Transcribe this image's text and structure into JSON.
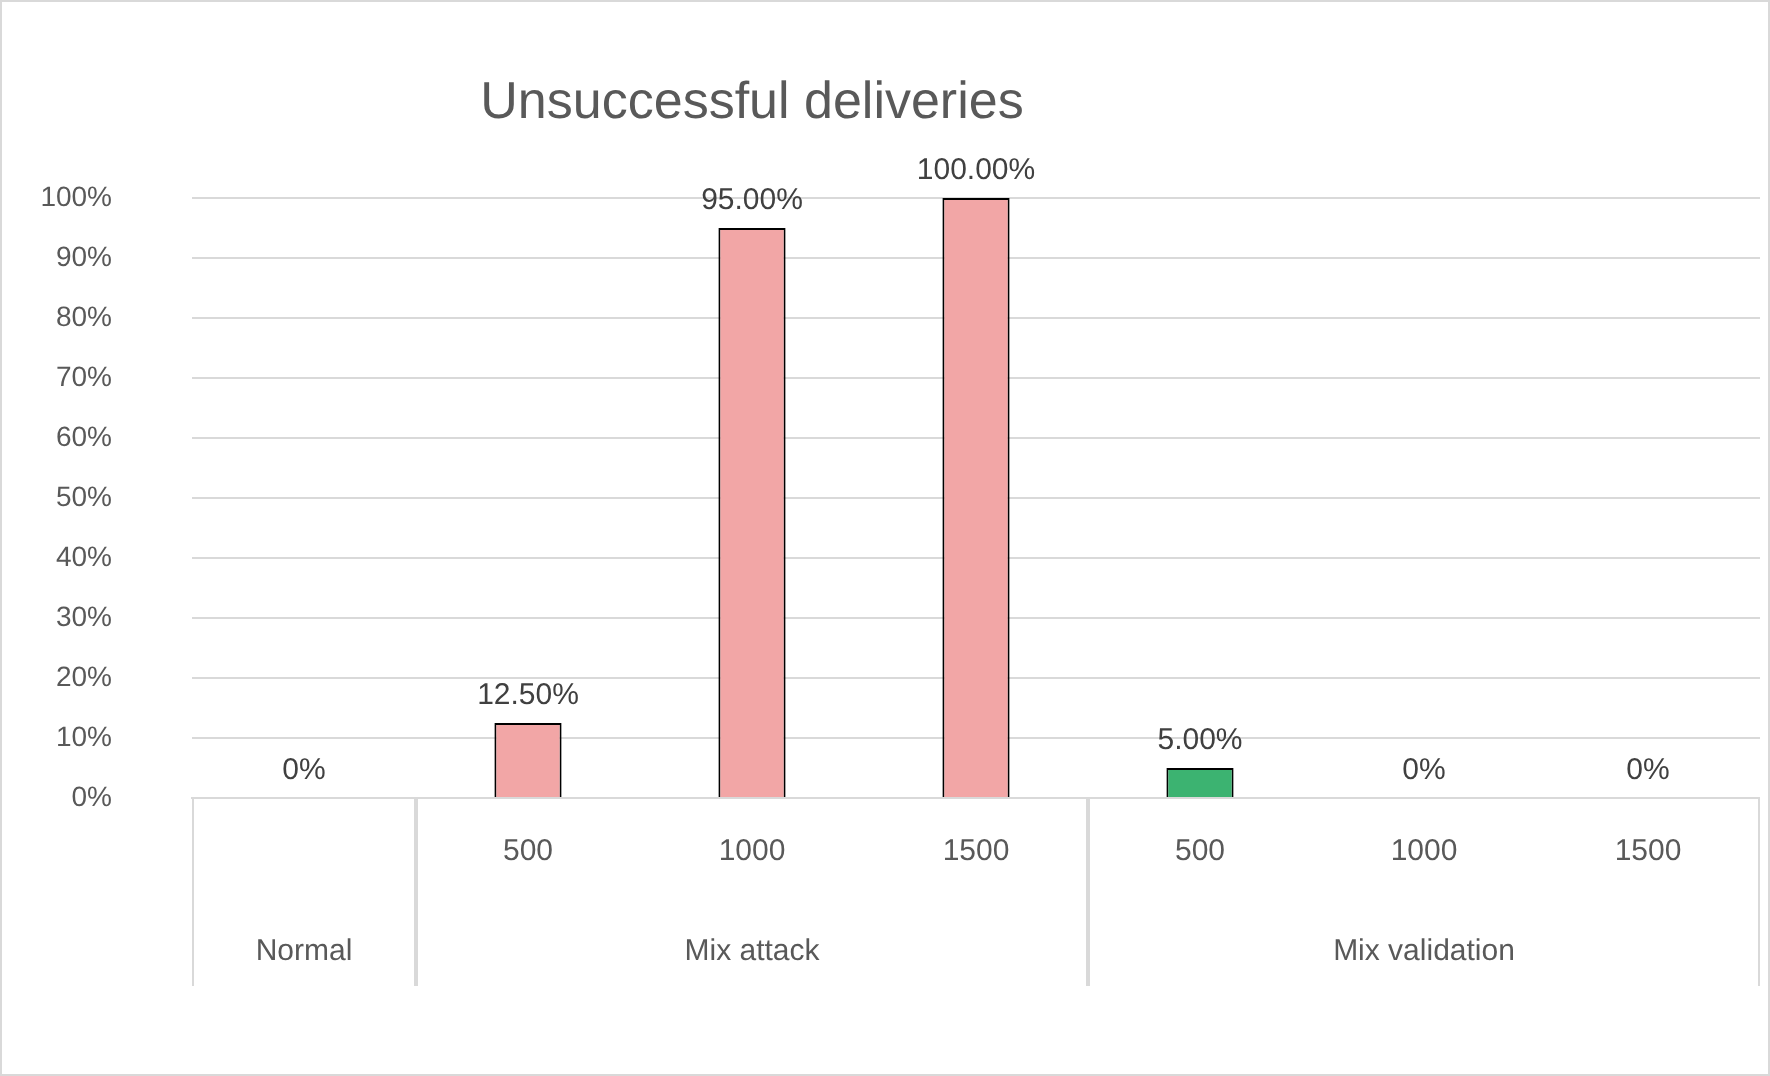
{
  "chart_data": [
    {
      "type": "bar",
      "categories": [
        null
      ],
      "values": [
        0
      ],
      "value_labels": [
        "0%"
      ],
      "color": "#f2a6a6",
      "xlabel": "Normal",
      "ylim": [
        0,
        100
      ],
      "yticks": [
        {
          "value": 0,
          "label": "0%"
        },
        {
          "value": 10,
          "label": "10%"
        },
        {
          "value": 20,
          "label": "20%"
        },
        {
          "value": 30,
          "label": "30%"
        },
        {
          "value": 40,
          "label": "40%"
        },
        {
          "value": 50,
          "label": "50%"
        },
        {
          "value": 60,
          "label": "60%"
        },
        {
          "value": 70,
          "label": "70%"
        },
        {
          "value": 80,
          "label": "80%"
        },
        {
          "value": 90,
          "label": "90%"
        },
        {
          "value": 100,
          "label": "100%"
        }
      ],
      "grid": "y"
    },
    {
      "type": "bar",
      "title": "Unsuccessful deliveries",
      "categories": [
        "500",
        "1000",
        "1500"
      ],
      "values": [
        12.5,
        95,
        100
      ],
      "value_labels": [
        "12.50%",
        "95.00%",
        "100.00%"
      ],
      "color": "#f2a6a6",
      "xlabel": "Mix attack",
      "ylim": [
        0,
        100
      ],
      "yticks": [
        0,
        10,
        20,
        30,
        40,
        50,
        60,
        70,
        80,
        90,
        100
      ],
      "grid": "y",
      "tick_labels": "x"
    },
    {
      "type": "bar",
      "categories": [
        "500",
        "1000",
        "1500"
      ],
      "values": [
        5,
        0,
        0
      ],
      "value_labels": [
        "5.00%",
        "0%",
        "0%"
      ],
      "color": "#3cb371",
      "xlabel": "Mix validation",
      "ylim": [
        0,
        100
      ],
      "yticks": [
        0,
        10,
        20,
        30,
        40,
        50,
        60,
        70,
        80,
        90,
        100
      ],
      "grid": "y",
      "tick_labels": "x"
    }
  ]
}
